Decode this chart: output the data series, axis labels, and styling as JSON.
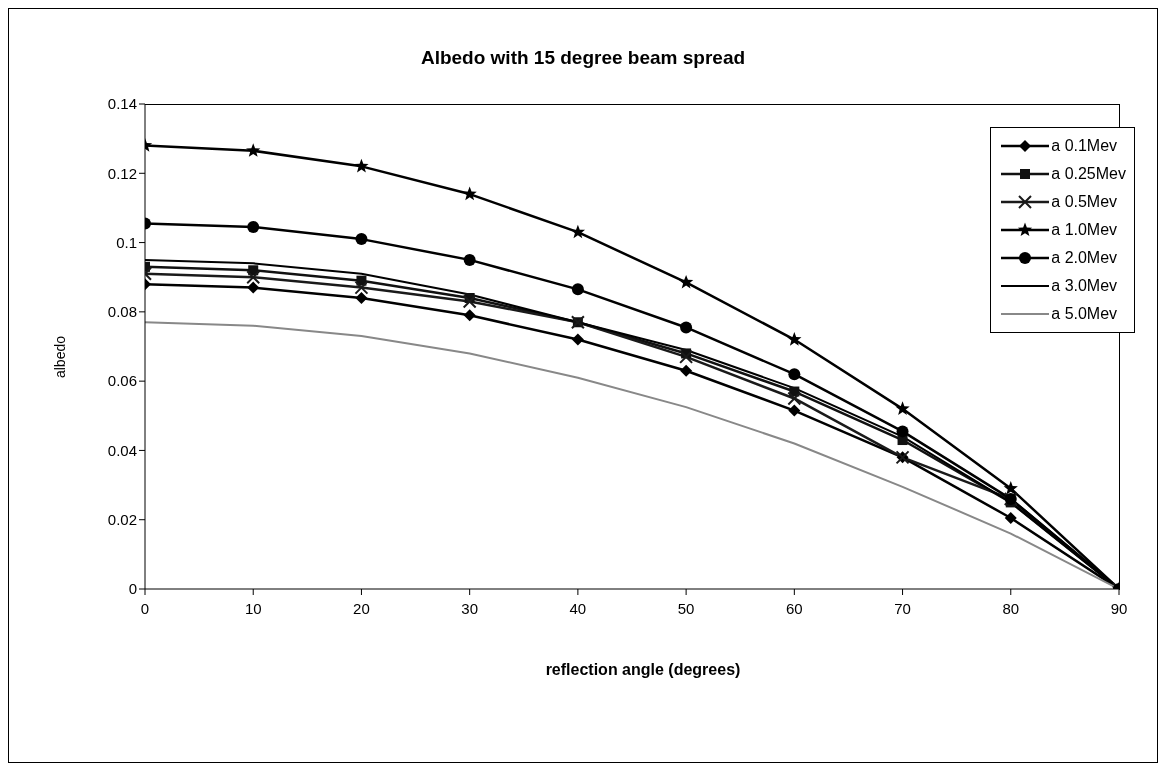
{
  "chart_data": {
    "type": "line",
    "title": "Albedo with 15 degree beam spread",
    "xlabel": "reflection angle (degrees)",
    "ylabel": "albedo",
    "x": [
      0,
      10,
      20,
      30,
      40,
      50,
      60,
      70,
      80,
      90
    ],
    "xlim": [
      0,
      90
    ],
    "xticks": [
      0,
      10,
      20,
      30,
      40,
      50,
      60,
      70,
      80,
      90
    ],
    "ylim": [
      0,
      0.14
    ],
    "yticks": [
      0,
      0.02,
      0.04,
      0.06,
      0.08,
      0.1,
      0.12,
      0.14
    ],
    "grid": false,
    "legend": "top right",
    "line_style": "solid",
    "series": [
      {
        "name": "a 0.1Mev",
        "color": "#000000",
        "marker": "diamond",
        "values": [
          0.088,
          0.087,
          0.084,
          0.079,
          0.072,
          0.063,
          0.0515,
          0.038,
          0.0205,
          0
        ]
      },
      {
        "name": "a 0.25Mev",
        "color": "#111111",
        "marker": "square",
        "values": [
          0.093,
          0.092,
          0.089,
          0.084,
          0.077,
          0.068,
          0.057,
          0.043,
          0.025,
          0
        ]
      },
      {
        "name": "a 0.5Mev",
        "color": "#1a1a1a",
        "marker": "cross",
        "values": [
          0.091,
          0.09,
          0.087,
          0.083,
          0.077,
          0.067,
          0.055,
          0.038,
          0.026,
          0
        ]
      },
      {
        "name": "a 1.0Mev",
        "color": "#000000",
        "marker": "star",
        "values": [
          0.128,
          0.1265,
          0.122,
          0.114,
          0.103,
          0.0885,
          0.072,
          0.052,
          0.029,
          0
        ]
      },
      {
        "name": "a 2.0Mev",
        "color": "#000000",
        "marker": "circle",
        "values": [
          0.1055,
          0.1045,
          0.101,
          0.095,
          0.0865,
          0.0755,
          0.062,
          0.0455,
          0.026,
          0
        ]
      },
      {
        "name": "a 3.0Mev",
        "color": "#000000",
        "marker": "none",
        "values": [
          0.095,
          0.094,
          0.091,
          0.085,
          0.077,
          0.069,
          0.058,
          0.044,
          0.025,
          0
        ]
      },
      {
        "name": "a 5.0Mev",
        "color": "#888888",
        "marker": "none",
        "values": [
          0.077,
          0.076,
          0.073,
          0.068,
          0.061,
          0.0525,
          0.042,
          0.0295,
          0.016,
          0
        ]
      }
    ]
  }
}
